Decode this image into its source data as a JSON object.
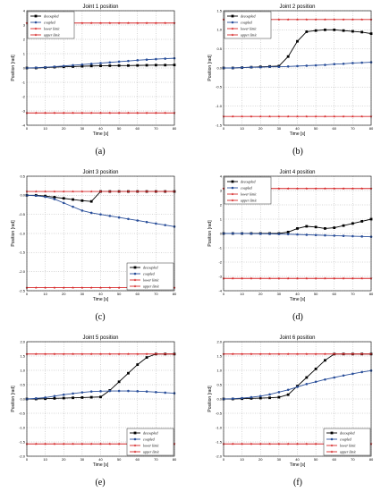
{
  "chart_data": [
    {
      "type": "line",
      "title": "Joint 1 position",
      "caption": "(a)",
      "xlabel": "Time [s]",
      "ylabel": "Position [rad]",
      "xlim": [
        0,
        80
      ],
      "ylim": [
        -4,
        4
      ],
      "xticks": [
        0,
        10,
        20,
        30,
        40,
        50,
        60,
        70,
        80
      ],
      "yticks": [
        -4,
        -3,
        -2,
        -1,
        0,
        1,
        2,
        3,
        4
      ],
      "ytick_labels": [
        "-4",
        "-3",
        "-2",
        "-1",
        "0",
        "1",
        "2",
        "3",
        "4"
      ],
      "grid": true,
      "legend_position": "top-left",
      "x": [
        0,
        5,
        10,
        15,
        20,
        25,
        30,
        35,
        40,
        45,
        50,
        55,
        60,
        65,
        70,
        75,
        80
      ],
      "series": [
        {
          "name": "decoupled",
          "values": [
            0.0,
            0.0,
            0.03,
            0.06,
            0.08,
            0.1,
            0.12,
            0.14,
            0.15,
            0.16,
            0.17,
            0.17,
            0.18,
            0.19,
            0.2,
            0.2,
            0.21
          ]
        },
        {
          "name": "coupled",
          "values": [
            0.0,
            0.02,
            0.05,
            0.09,
            0.14,
            0.19,
            0.24,
            0.29,
            0.34,
            0.39,
            0.44,
            0.49,
            0.54,
            0.58,
            0.62,
            0.65,
            0.68
          ]
        },
        {
          "name": "lower limit",
          "values": [
            -3.14,
            -3.14,
            -3.14,
            -3.14,
            -3.14,
            -3.14,
            -3.14,
            -3.14,
            -3.14,
            -3.14,
            -3.14,
            -3.14,
            -3.14,
            -3.14,
            -3.14,
            -3.14,
            -3.14
          ]
        },
        {
          "name": "upper limit",
          "values": [
            3.14,
            3.14,
            3.14,
            3.14,
            3.14,
            3.14,
            3.14,
            3.14,
            3.14,
            3.14,
            3.14,
            3.14,
            3.14,
            3.14,
            3.14,
            3.14,
            3.14
          ]
        }
      ]
    },
    {
      "type": "line",
      "title": "Joint 2 position",
      "caption": "(b)",
      "xlabel": "Time [s]",
      "ylabel": "Position [rad]",
      "xlim": [
        0,
        80
      ],
      "ylim": [
        -1.5,
        1.5
      ],
      "xticks": [
        0,
        10,
        20,
        30,
        40,
        50,
        60,
        70,
        80
      ],
      "yticks": [
        -1.5,
        -1.0,
        -0.5,
        0.0,
        0.5,
        1.0,
        1.5
      ],
      "ytick_labels": [
        "-1.5",
        "-1.0",
        "-0.5",
        "0.0",
        "0.5",
        "1.0",
        "1.5"
      ],
      "grid": true,
      "legend_position": "top-left",
      "x": [
        0,
        5,
        10,
        15,
        20,
        25,
        30,
        35,
        40,
        45,
        50,
        55,
        60,
        65,
        70,
        75,
        80
      ],
      "series": [
        {
          "name": "decoupled",
          "values": [
            0.0,
            0.0,
            0.01,
            0.02,
            0.03,
            0.04,
            0.05,
            0.3,
            0.7,
            0.95,
            0.98,
            1.0,
            1.0,
            0.98,
            0.96,
            0.94,
            0.9
          ]
        },
        {
          "name": "coupled",
          "values": [
            0.0,
            0.0,
            0.01,
            0.02,
            0.02,
            0.03,
            0.03,
            0.04,
            0.05,
            0.06,
            0.07,
            0.08,
            0.1,
            0.11,
            0.13,
            0.14,
            0.15
          ]
        },
        {
          "name": "lower limit",
          "values": [
            -1.27,
            -1.27,
            -1.27,
            -1.27,
            -1.27,
            -1.27,
            -1.27,
            -1.27,
            -1.27,
            -1.27,
            -1.27,
            -1.27,
            -1.27,
            -1.27,
            -1.27,
            -1.27,
            -1.27
          ]
        },
        {
          "name": "upper limit",
          "values": [
            1.27,
            1.27,
            1.27,
            1.27,
            1.27,
            1.27,
            1.27,
            1.27,
            1.27,
            1.27,
            1.27,
            1.27,
            1.27,
            1.27,
            1.27,
            1.27,
            1.27
          ]
        }
      ]
    },
    {
      "type": "line",
      "title": "Joint 3 position",
      "caption": "(c)",
      "xlabel": "Time [s]",
      "ylabel": "Position [rad]",
      "xlim": [
        0,
        80
      ],
      "ylim": [
        -2.5,
        0.5
      ],
      "xticks": [
        0,
        10,
        20,
        30,
        40,
        50,
        60,
        70,
        80
      ],
      "yticks": [
        -2.5,
        -2.0,
        -1.5,
        -1.0,
        -0.5,
        0.0,
        0.5
      ],
      "ytick_labels": [
        "-2.5",
        "-2.0",
        "-1.5",
        "-1.0",
        "-0.5",
        "0.0",
        "0.5"
      ],
      "grid": true,
      "legend_position": "bottom-right",
      "x": [
        0,
        5,
        10,
        15,
        20,
        25,
        30,
        35,
        40,
        45,
        50,
        55,
        60,
        65,
        70,
        75,
        80
      ],
      "series": [
        {
          "name": "decoupled",
          "values": [
            0.0,
            0.0,
            -0.02,
            -0.05,
            -0.08,
            -0.11,
            -0.14,
            -0.16,
            0.1,
            0.1,
            0.1,
            0.1,
            0.1,
            0.1,
            0.1,
            0.1,
            0.1
          ]
        },
        {
          "name": "coupled",
          "values": [
            0.0,
            -0.01,
            -0.04,
            -0.1,
            -0.2,
            -0.3,
            -0.4,
            -0.46,
            -0.5,
            -0.54,
            -0.58,
            -0.62,
            -0.66,
            -0.7,
            -0.74,
            -0.78,
            -0.82
          ]
        },
        {
          "name": "lower limit",
          "values": [
            -2.42,
            -2.42,
            -2.42,
            -2.42,
            -2.42,
            -2.42,
            -2.42,
            -2.42,
            -2.42,
            -2.42,
            -2.42,
            -2.42,
            -2.42,
            -2.42,
            -2.42,
            -2.42,
            -2.42
          ]
        },
        {
          "name": "upper limit",
          "values": [
            0.1,
            0.1,
            0.1,
            0.1,
            0.1,
            0.1,
            0.1,
            0.1,
            0.1,
            0.1,
            0.1,
            0.1,
            0.1,
            0.1,
            0.1,
            0.1,
            0.1
          ]
        }
      ]
    },
    {
      "type": "line",
      "title": "Joint 4 position",
      "caption": "(d)",
      "xlabel": "Time [s]",
      "ylabel": "Position [rad]",
      "xlim": [
        0,
        80
      ],
      "ylim": [
        -4,
        4
      ],
      "xticks": [
        0,
        10,
        20,
        30,
        40,
        50,
        60,
        70,
        80
      ],
      "yticks": [
        -4,
        -3,
        -2,
        -1,
        0,
        1,
        2,
        3,
        4
      ],
      "ytick_labels": [
        "-4",
        "-3",
        "-2",
        "-1",
        "0",
        "1",
        "2",
        "3",
        "4"
      ],
      "grid": true,
      "legend_position": "top-left",
      "x": [
        0,
        5,
        10,
        15,
        20,
        25,
        30,
        35,
        40,
        45,
        50,
        55,
        60,
        65,
        70,
        75,
        80
      ],
      "series": [
        {
          "name": "decoupled",
          "values": [
            0.0,
            0.0,
            0.0,
            0.0,
            0.0,
            0.0,
            0.0,
            0.1,
            0.35,
            0.5,
            0.45,
            0.35,
            0.4,
            0.55,
            0.7,
            0.85,
            1.0
          ]
        },
        {
          "name": "coupled",
          "values": [
            0.0,
            0.0,
            0.0,
            -0.01,
            -0.02,
            -0.03,
            -0.04,
            -0.05,
            -0.07,
            -0.09,
            -0.11,
            -0.13,
            -0.15,
            -0.17,
            -0.19,
            -0.21,
            -0.23
          ]
        },
        {
          "name": "lower limit",
          "values": [
            -3.14,
            -3.14,
            -3.14,
            -3.14,
            -3.14,
            -3.14,
            -3.14,
            -3.14,
            -3.14,
            -3.14,
            -3.14,
            -3.14,
            -3.14,
            -3.14,
            -3.14,
            -3.14,
            -3.14
          ]
        },
        {
          "name": "upper limit",
          "values": [
            3.14,
            3.14,
            3.14,
            3.14,
            3.14,
            3.14,
            3.14,
            3.14,
            3.14,
            3.14,
            3.14,
            3.14,
            3.14,
            3.14,
            3.14,
            3.14,
            3.14
          ]
        }
      ]
    },
    {
      "type": "line",
      "title": "Joint 5 position",
      "caption": "(e)",
      "xlabel": "Time [s]",
      "ylabel": "Position [rad]",
      "xlim": [
        0,
        80
      ],
      "ylim": [
        -2.0,
        2.0
      ],
      "xticks": [
        0,
        10,
        20,
        30,
        40,
        50,
        60,
        70,
        80
      ],
      "yticks": [
        -2.0,
        -1.5,
        -1.0,
        -0.5,
        0.0,
        0.5,
        1.0,
        1.5,
        2.0
      ],
      "ytick_labels": [
        "-2.0",
        "-1.5",
        "-1.0",
        "-0.5",
        "0.0",
        "0.5",
        "1.0",
        "1.5",
        "2.0"
      ],
      "grid": true,
      "legend_position": "bottom-right",
      "x": [
        0,
        5,
        10,
        15,
        20,
        25,
        30,
        35,
        40,
        45,
        50,
        55,
        60,
        65,
        70,
        75,
        80
      ],
      "series": [
        {
          "name": "decoupled",
          "values": [
            0.0,
            0.0,
            0.01,
            0.02,
            0.03,
            0.04,
            0.05,
            0.06,
            0.07,
            0.3,
            0.6,
            0.9,
            1.2,
            1.45,
            1.57,
            1.57,
            1.57
          ]
        },
        {
          "name": "coupled",
          "values": [
            0.0,
            0.02,
            0.05,
            0.1,
            0.15,
            0.19,
            0.23,
            0.26,
            0.27,
            0.28,
            0.28,
            0.28,
            0.27,
            0.26,
            0.24,
            0.22,
            0.2
          ]
        },
        {
          "name": "lower limit",
          "values": [
            -1.57,
            -1.57,
            -1.57,
            -1.57,
            -1.57,
            -1.57,
            -1.57,
            -1.57,
            -1.57,
            -1.57,
            -1.57,
            -1.57,
            -1.57,
            -1.57,
            -1.57,
            -1.57,
            -1.57
          ]
        },
        {
          "name": "upper limit",
          "values": [
            1.57,
            1.57,
            1.57,
            1.57,
            1.57,
            1.57,
            1.57,
            1.57,
            1.57,
            1.57,
            1.57,
            1.57,
            1.57,
            1.57,
            1.57,
            1.57,
            1.57
          ]
        }
      ]
    },
    {
      "type": "line",
      "title": "Joint 6 position",
      "caption": "(f)",
      "xlabel": "Time [s]",
      "ylabel": "Position [rad]",
      "xlim": [
        0,
        80
      ],
      "ylim": [
        -2.0,
        2.0
      ],
      "xticks": [
        0,
        10,
        20,
        30,
        40,
        50,
        60,
        70,
        80
      ],
      "yticks": [
        -2.0,
        -1.5,
        -1.0,
        -0.5,
        0.0,
        0.5,
        1.0,
        1.5,
        2.0
      ],
      "ytick_labels": [
        "-2.0",
        "-1.5",
        "-1.0",
        "-0.5",
        "0.0",
        "0.5",
        "1.0",
        "1.5",
        "2.0"
      ],
      "grid": true,
      "legend_position": "bottom-right",
      "x": [
        0,
        5,
        10,
        15,
        20,
        25,
        30,
        35,
        40,
        45,
        50,
        55,
        60,
        65,
        70,
        75,
        80
      ],
      "series": [
        {
          "name": "decoupled",
          "values": [
            0.0,
            0.0,
            0.01,
            0.02,
            0.03,
            0.04,
            0.06,
            0.15,
            0.45,
            0.75,
            1.05,
            1.35,
            1.57,
            1.57,
            1.57,
            1.57,
            1.57
          ]
        },
        {
          "name": "coupled",
          "values": [
            0.0,
            0.01,
            0.03,
            0.06,
            0.1,
            0.16,
            0.24,
            0.32,
            0.42,
            0.52,
            0.6,
            0.68,
            0.75,
            0.82,
            0.88,
            0.94,
            0.99
          ]
        },
        {
          "name": "lower limit",
          "values": [
            -1.57,
            -1.57,
            -1.57,
            -1.57,
            -1.57,
            -1.57,
            -1.57,
            -1.57,
            -1.57,
            -1.57,
            -1.57,
            -1.57,
            -1.57,
            -1.57,
            -1.57,
            -1.57,
            -1.57
          ]
        },
        {
          "name": "upper limit",
          "values": [
            1.57,
            1.57,
            1.57,
            1.57,
            1.57,
            1.57,
            1.57,
            1.57,
            1.57,
            1.57,
            1.57,
            1.57,
            1.57,
            1.57,
            1.57,
            1.57,
            1.57
          ]
        }
      ]
    }
  ],
  "series_styles": {
    "decoupled": {
      "color": "#000000",
      "marker": "square"
    },
    "coupled": {
      "color": "#2a4f9a",
      "marker": "circle"
    },
    "lower limit": {
      "color": "#d62728",
      "marker": "star"
    },
    "upper limit": {
      "color": "#d62728",
      "marker": "star"
    }
  }
}
